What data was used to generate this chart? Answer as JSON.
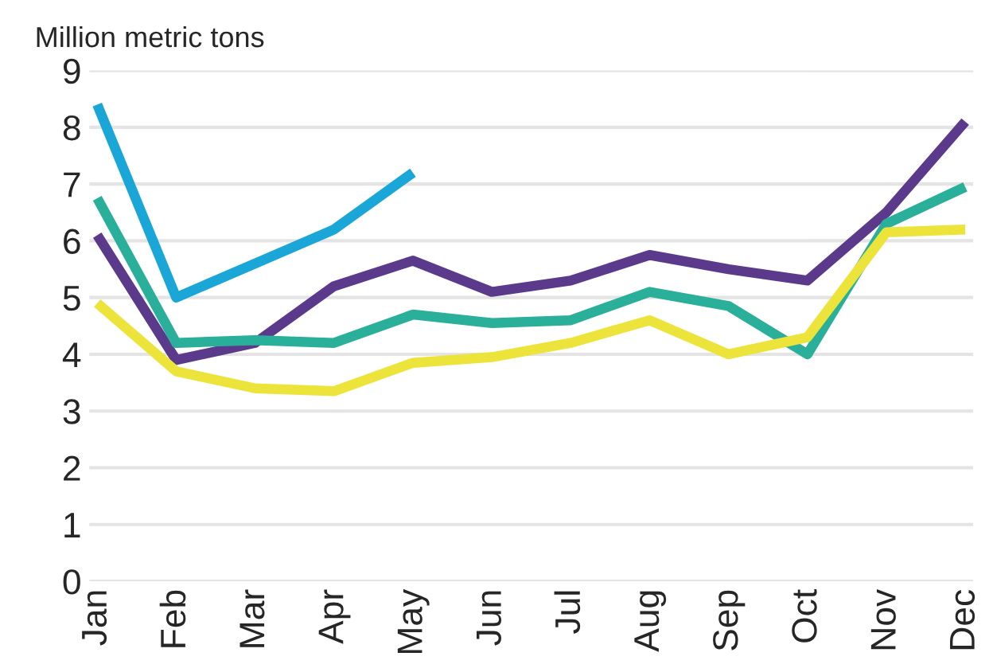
{
  "chart_data": {
    "type": "line",
    "ylabel": "Million metric tons",
    "categories": [
      "Jan",
      "Feb",
      "Mar",
      "Apr",
      "May",
      "Jun",
      "Jul",
      "Aug",
      "Sep",
      "Oct",
      "Nov",
      "Dec"
    ],
    "series": [
      {
        "color": "#1aa6d6",
        "values": [
          8.4,
          5.0,
          5.6,
          6.2,
          7.2,
          null,
          null,
          null,
          null,
          null,
          null,
          null
        ]
      },
      {
        "color": "#5b3a8c",
        "values": [
          6.1,
          3.9,
          4.2,
          5.2,
          5.65,
          5.1,
          5.3,
          5.75,
          5.5,
          5.3,
          6.5,
          8.1
        ]
      },
      {
        "color": "#2ab09a",
        "values": [
          6.75,
          4.2,
          4.25,
          4.2,
          4.7,
          4.55,
          4.6,
          5.1,
          4.85,
          4.0,
          6.3,
          6.95
        ]
      },
      {
        "color": "#ece43a",
        "values": [
          4.9,
          3.7,
          3.4,
          3.35,
          3.85,
          3.95,
          4.2,
          4.6,
          4.0,
          4.3,
          6.15,
          6.2
        ]
      }
    ],
    "ylim": [
      0,
      9
    ],
    "yticks": [
      0,
      1,
      2,
      3,
      4,
      5,
      6,
      7,
      8,
      9
    ],
    "grid": "y",
    "legend": false,
    "marker": "none",
    "line_style": "solid"
  }
}
